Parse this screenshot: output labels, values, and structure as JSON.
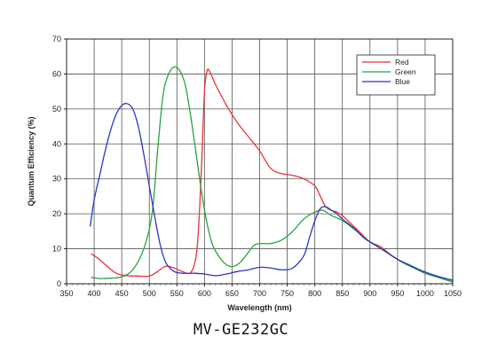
{
  "chart_data": {
    "type": "line",
    "xlabel": "Wavelength (nm)",
    "ylabel": "Quantum Efficiency (%)",
    "xlim": [
      350,
      1050
    ],
    "ylim": [
      0,
      70
    ],
    "xticks": [
      350,
      400,
      450,
      500,
      550,
      600,
      650,
      700,
      750,
      800,
      850,
      900,
      950,
      1000,
      1050
    ],
    "yticks": [
      0,
      10,
      20,
      30,
      40,
      50,
      60,
      70
    ],
    "grid": true,
    "legend": "top-right",
    "series": [
      {
        "name": "Red",
        "color": "#e8333a",
        "x": [
          395,
          405,
          420,
          440,
          460,
          480,
          500,
          515,
          530,
          545,
          560,
          575,
          585,
          590,
          595,
          600,
          605,
          610,
          620,
          640,
          660,
          680,
          700,
          720,
          740,
          760,
          780,
          800,
          810,
          820,
          830,
          840,
          850,
          860,
          880,
          900,
          920,
          940,
          960,
          980,
          1000,
          1020,
          1040,
          1050
        ],
        "y": [
          8.5,
          7.5,
          5.5,
          3,
          2.3,
          2.2,
          2.2,
          3.5,
          5,
          4.5,
          3.5,
          3.2,
          8,
          18,
          35,
          55,
          61,
          60.5,
          57,
          51,
          46,
          42,
          38,
          33,
          31.5,
          31,
          30,
          28,
          25,
          22,
          21,
          20.5,
          19.5,
          18,
          15,
          12,
          10.5,
          8,
          6,
          4.5,
          3,
          2,
          1,
          0.5
        ]
      },
      {
        "name": "Green",
        "color": "#27a33b",
        "x": [
          395,
          410,
          430,
          450,
          470,
          490,
          505,
          515,
          525,
          535,
          545,
          555,
          565,
          575,
          585,
          595,
          605,
          615,
          630,
          645,
          660,
          675,
          690,
          705,
          720,
          740,
          760,
          780,
          800,
          815,
          830,
          845,
          860,
          880,
          900,
          920,
          940,
          960,
          980,
          1000,
          1020,
          1040,
          1050
        ],
        "y": [
          1.8,
          1.5,
          1.6,
          2,
          4,
          10,
          20,
          38,
          54,
          60,
          62,
          61,
          57,
          48,
          37,
          26,
          17,
          11,
          7,
          5,
          5.5,
          8,
          11,
          11.5,
          11.5,
          12.5,
          15,
          18.5,
          20.5,
          21,
          19.5,
          18.5,
          17,
          14.5,
          12,
          10,
          8,
          6,
          4.5,
          3,
          2,
          1,
          0.5
        ]
      },
      {
        "name": "Blue",
        "color": "#2d35c4",
        "x": [
          393,
          400,
          410,
          420,
          430,
          440,
          450,
          460,
          470,
          480,
          490,
          500,
          510,
          520,
          530,
          545,
          560,
          580,
          600,
          620,
          640,
          660,
          680,
          700,
          720,
          740,
          760,
          780,
          790,
          800,
          810,
          820,
          830,
          840,
          850,
          870,
          890,
          910,
          930,
          950,
          970,
          990,
          1010,
          1030,
          1050
        ],
        "y": [
          16.5,
          24,
          31,
          38,
          44,
          48.5,
          51,
          51.5,
          50,
          45,
          37,
          28,
          19,
          11,
          6,
          3.5,
          3,
          3,
          2.8,
          2.3,
          2.8,
          3.5,
          4,
          4.7,
          4.5,
          4,
          4.5,
          8,
          13,
          18,
          21.5,
          22,
          21,
          20,
          18.5,
          16,
          13,
          11,
          9,
          7,
          5.5,
          4,
          2.8,
          1.8,
          1
        ]
      }
    ]
  },
  "caption": "MV-GE232GC"
}
